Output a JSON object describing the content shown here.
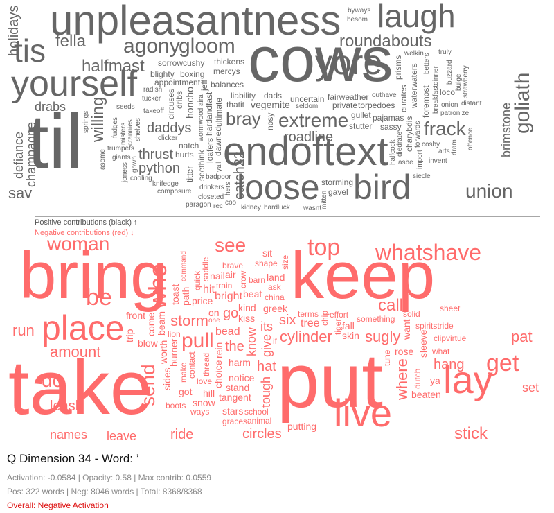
{
  "colors": {
    "positive": "#666666",
    "negative": "#ff6b6b",
    "divider": "#a7a7a7"
  },
  "positive_cloud": [
    [
      "cows",
      92
    ],
    [
      "til",
      110
    ],
    [
      "unpleasantness",
      60
    ],
    [
      "laugh",
      46
    ],
    [
      "yourself",
      52
    ],
    [
      "endoftext",
      58
    ],
    [
      "loose",
      50
    ],
    [
      "bird",
      50
    ],
    [
      "tis",
      46
    ],
    [
      "yore",
      50
    ],
    [
      "agony",
      30
    ],
    [
      "gloom",
      30
    ],
    [
      "fella",
      24
    ],
    [
      "halfmast",
      24
    ],
    [
      "roundabouts",
      24
    ],
    [
      "extreme",
      28
    ],
    [
      "frack",
      28
    ],
    [
      "goliath",
      30
    ],
    [
      "bray",
      26
    ],
    [
      "union",
      28
    ],
    [
      "drabs",
      18
    ],
    [
      "daddys",
      20
    ],
    [
      "thrust",
      20
    ],
    [
      "python",
      20
    ],
    [
      "willing",
      24
    ],
    [
      "catch22",
      20
    ],
    [
      "roadline",
      20
    ],
    [
      "defiance",
      18
    ],
    [
      "champagne",
      18
    ],
    [
      "sav",
      22
    ],
    [
      "holidays",
      20
    ],
    [
      "brimstone",
      18
    ],
    [
      "vegemite",
      14
    ],
    [
      "uncertain",
      12
    ],
    [
      "liability",
      12
    ],
    [
      "ultimate",
      12
    ],
    [
      "hardandfast",
      12
    ],
    [
      "fairweather",
      12
    ],
    [
      "dads",
      12
    ],
    [
      "balances",
      12
    ],
    [
      "private",
      12
    ],
    [
      "wormwood",
      10
    ],
    [
      "mercys",
      12
    ],
    [
      "gullet",
      12
    ],
    [
      "nosy",
      12
    ],
    [
      "honcho",
      14
    ],
    [
      "appointment",
      12
    ],
    [
      "thickens",
      12
    ],
    [
      "torpedoes",
      12
    ],
    [
      "boxing",
      12
    ],
    [
      "dawned",
      12
    ],
    [
      "thatit",
      12
    ],
    [
      "dribs",
      12
    ],
    [
      "stutter",
      12
    ],
    [
      "circuses",
      12
    ],
    [
      "natch",
      12
    ],
    [
      "sassy",
      12
    ],
    [
      "takeoff",
      10
    ],
    [
      "curates",
      12
    ],
    [
      "loafers",
      12
    ],
    [
      "blighty",
      12
    ],
    [
      "cushy",
      12
    ],
    [
      "waterwaters",
      12
    ],
    [
      "charybdis",
      12
    ],
    [
      "sorrow",
      12
    ],
    [
      "foremost",
      12
    ],
    [
      "pajamas",
      12
    ],
    [
      "seldom",
      10
    ],
    [
      "tucker",
      10
    ],
    [
      "seethink",
      12
    ],
    [
      "shelves",
      10
    ],
    [
      "forwards",
      10
    ],
    [
      "hurts",
      12
    ],
    [
      "jeff",
      12
    ],
    [
      "outhave",
      10
    ],
    [
      "prisms",
      12
    ],
    [
      "storming",
      12
    ],
    [
      "titter",
      12
    ],
    [
      "crannies",
      10
    ],
    [
      "yall",
      10
    ],
    [
      "radish",
      10
    ],
    [
      "clicker",
      10
    ],
    [
      "diedrate",
      10
    ],
    [
      "breakfastdinner",
      10
    ],
    [
      "fudges",
      10
    ],
    [
      "welkin",
      10
    ],
    [
      "seeds",
      10
    ],
    [
      "halfcock",
      10
    ],
    [
      "badpoor",
      10
    ],
    [
      "drinkers",
      10
    ],
    [
      "loco",
      12
    ],
    [
      "hers",
      10
    ],
    [
      "cosby",
      10
    ],
    [
      "misters",
      10
    ],
    [
      "asbe",
      10
    ],
    [
      "aira",
      10
    ],
    [
      "import",
      10
    ],
    [
      "betters",
      10
    ],
    [
      "gavel",
      12
    ],
    [
      "knifedge",
      10
    ],
    [
      "patronize",
      10
    ],
    [
      "composure",
      10
    ],
    [
      "buzzard",
      10
    ],
    [
      "besom",
      10
    ],
    [
      "trumpets",
      10
    ],
    [
      "closeted",
      10
    ],
    [
      "giants",
      10
    ],
    [
      "bulge",
      10
    ],
    [
      "gown",
      10
    ],
    [
      "onion",
      10
    ],
    [
      "distant",
      10
    ],
    [
      "mitten",
      10
    ],
    [
      "invent",
      10
    ],
    [
      "hardluck",
      10
    ],
    [
      "arts",
      10
    ],
    [
      "coo",
      10
    ],
    [
      "siecle",
      10
    ],
    [
      "wasnt",
      10
    ],
    [
      "offence",
      10
    ],
    [
      "byways",
      10
    ],
    [
      "springs",
      10
    ],
    [
      "truly",
      10
    ],
    [
      "strawberry",
      10
    ],
    [
      "dram",
      10
    ],
    [
      "joness",
      10
    ],
    [
      "kidney",
      10
    ],
    [
      "cooling",
      10
    ],
    [
      "paragon",
      10
    ],
    [
      "asome",
      10
    ],
    [
      "rec",
      10
    ]
  ],
  "negative_cloud": [
    [
      "take",
      110
    ],
    [
      "put",
      110
    ],
    [
      "bring",
      96
    ],
    [
      "keep",
      96
    ],
    [
      "live",
      56
    ],
    [
      "lay",
      56
    ],
    [
      "place",
      50
    ],
    [
      "whatshave",
      32
    ],
    [
      "who",
      36
    ],
    [
      "woman",
      28
    ],
    [
      "see",
      28
    ],
    [
      "top",
      34
    ],
    [
      "pull",
      30
    ],
    [
      "send",
      28
    ],
    [
      "get",
      34
    ],
    [
      "be",
      34
    ],
    [
      "circles",
      20
    ],
    [
      "cylinder",
      22
    ],
    [
      "sugly",
      22
    ],
    [
      "storm",
      22
    ],
    [
      "call",
      24
    ],
    [
      "run",
      22
    ],
    [
      "amount",
      22
    ],
    [
      "leash",
      20
    ],
    [
      "do",
      28
    ],
    [
      "ride",
      20
    ],
    [
      "leave",
      18
    ],
    [
      "names",
      18
    ],
    [
      "stick",
      24
    ],
    [
      "pat",
      22
    ],
    [
      "set",
      18
    ],
    [
      "where",
      22
    ],
    [
      "hang",
      20
    ],
    [
      "give",
      18
    ],
    [
      "know",
      18
    ],
    [
      "its",
      18
    ],
    [
      "six",
      20
    ],
    [
      "the",
      20
    ],
    [
      "hat",
      20
    ],
    [
      "tree",
      16
    ],
    [
      "bead",
      16
    ],
    [
      "kiss",
      14
    ],
    [
      "harm",
      14
    ],
    [
      "greek",
      14
    ],
    [
      "go",
      20
    ],
    [
      "kind",
      14
    ],
    [
      "rein",
      14
    ],
    [
      "tiger",
      12
    ],
    [
      "notice",
      14
    ],
    [
      "skin",
      14
    ],
    [
      "choice",
      14
    ],
    [
      "china",
      12
    ],
    [
      "thread",
      12
    ],
    [
      "effort",
      12
    ],
    [
      "fall",
      14
    ],
    [
      "bright",
      16
    ],
    [
      "tough",
      18
    ],
    [
      "stand",
      14
    ],
    [
      "contact",
      12
    ],
    [
      "ask",
      12
    ],
    [
      "burner",
      14
    ],
    [
      "chip",
      12
    ],
    [
      "on",
      14
    ],
    [
      "something",
      12
    ],
    [
      "beat",
      14
    ],
    [
      "love",
      12
    ],
    [
      "tangent",
      14
    ],
    [
      "worth",
      14
    ],
    [
      "price",
      14
    ],
    [
      "train",
      12
    ],
    [
      "barn",
      12
    ],
    [
      "tune",
      12
    ],
    [
      "beam",
      14
    ],
    [
      "come",
      14
    ],
    [
      "land",
      14
    ],
    [
      "make",
      12
    ],
    [
      "hill",
      14
    ],
    [
      "path",
      14
    ],
    [
      "toast",
      14
    ],
    [
      "blow",
      14
    ],
    [
      "crow",
      12
    ],
    [
      "want",
      14
    ],
    [
      "terms",
      12
    ],
    [
      "sides",
      14
    ],
    [
      "nail",
      14
    ],
    [
      "snow",
      14
    ],
    [
      "school",
      12
    ],
    [
      "hit",
      16
    ],
    [
      "got",
      14
    ],
    [
      "rose",
      14
    ],
    [
      "stars",
      14
    ],
    [
      "shape",
      12
    ],
    [
      "sleeve",
      14
    ],
    [
      "solid",
      12
    ],
    [
      "front",
      14
    ],
    [
      "quick",
      12
    ],
    [
      "brave",
      12
    ],
    [
      "spiritstride",
      12
    ],
    [
      "dutch",
      12
    ],
    [
      "graces",
      12
    ],
    [
      "saddle",
      12
    ],
    [
      "ways",
      12
    ],
    [
      "animal",
      12
    ],
    [
      "size",
      12
    ],
    [
      "air",
      14
    ],
    [
      "boots",
      12
    ],
    [
      "sit",
      14
    ],
    [
      "trip",
      14
    ],
    [
      "putting",
      14
    ],
    [
      "clipvirtue",
      12
    ],
    [
      "command",
      10
    ],
    [
      "beaten",
      14
    ],
    [
      "lion",
      12
    ],
    [
      "what",
      12
    ],
    [
      "ya",
      14
    ],
    [
      "if",
      12
    ],
    [
      "sheet",
      12
    ],
    [
      "one",
      10
    ]
  ],
  "legend": {
    "positive": "Positive contributions (black) ↑",
    "negative": "Negative contributions (red) ↓"
  },
  "info": {
    "title": "Q Dimension 34 - Word: ’",
    "activation_line": "Activation: -0.0584 | Opacity: 0.58 | Max contrib: 0.0559",
    "counts_line": "Pos: 322 words | Neg: 8046 words | Total: 8368/8368",
    "overall": "Overall: Negative Activation"
  }
}
